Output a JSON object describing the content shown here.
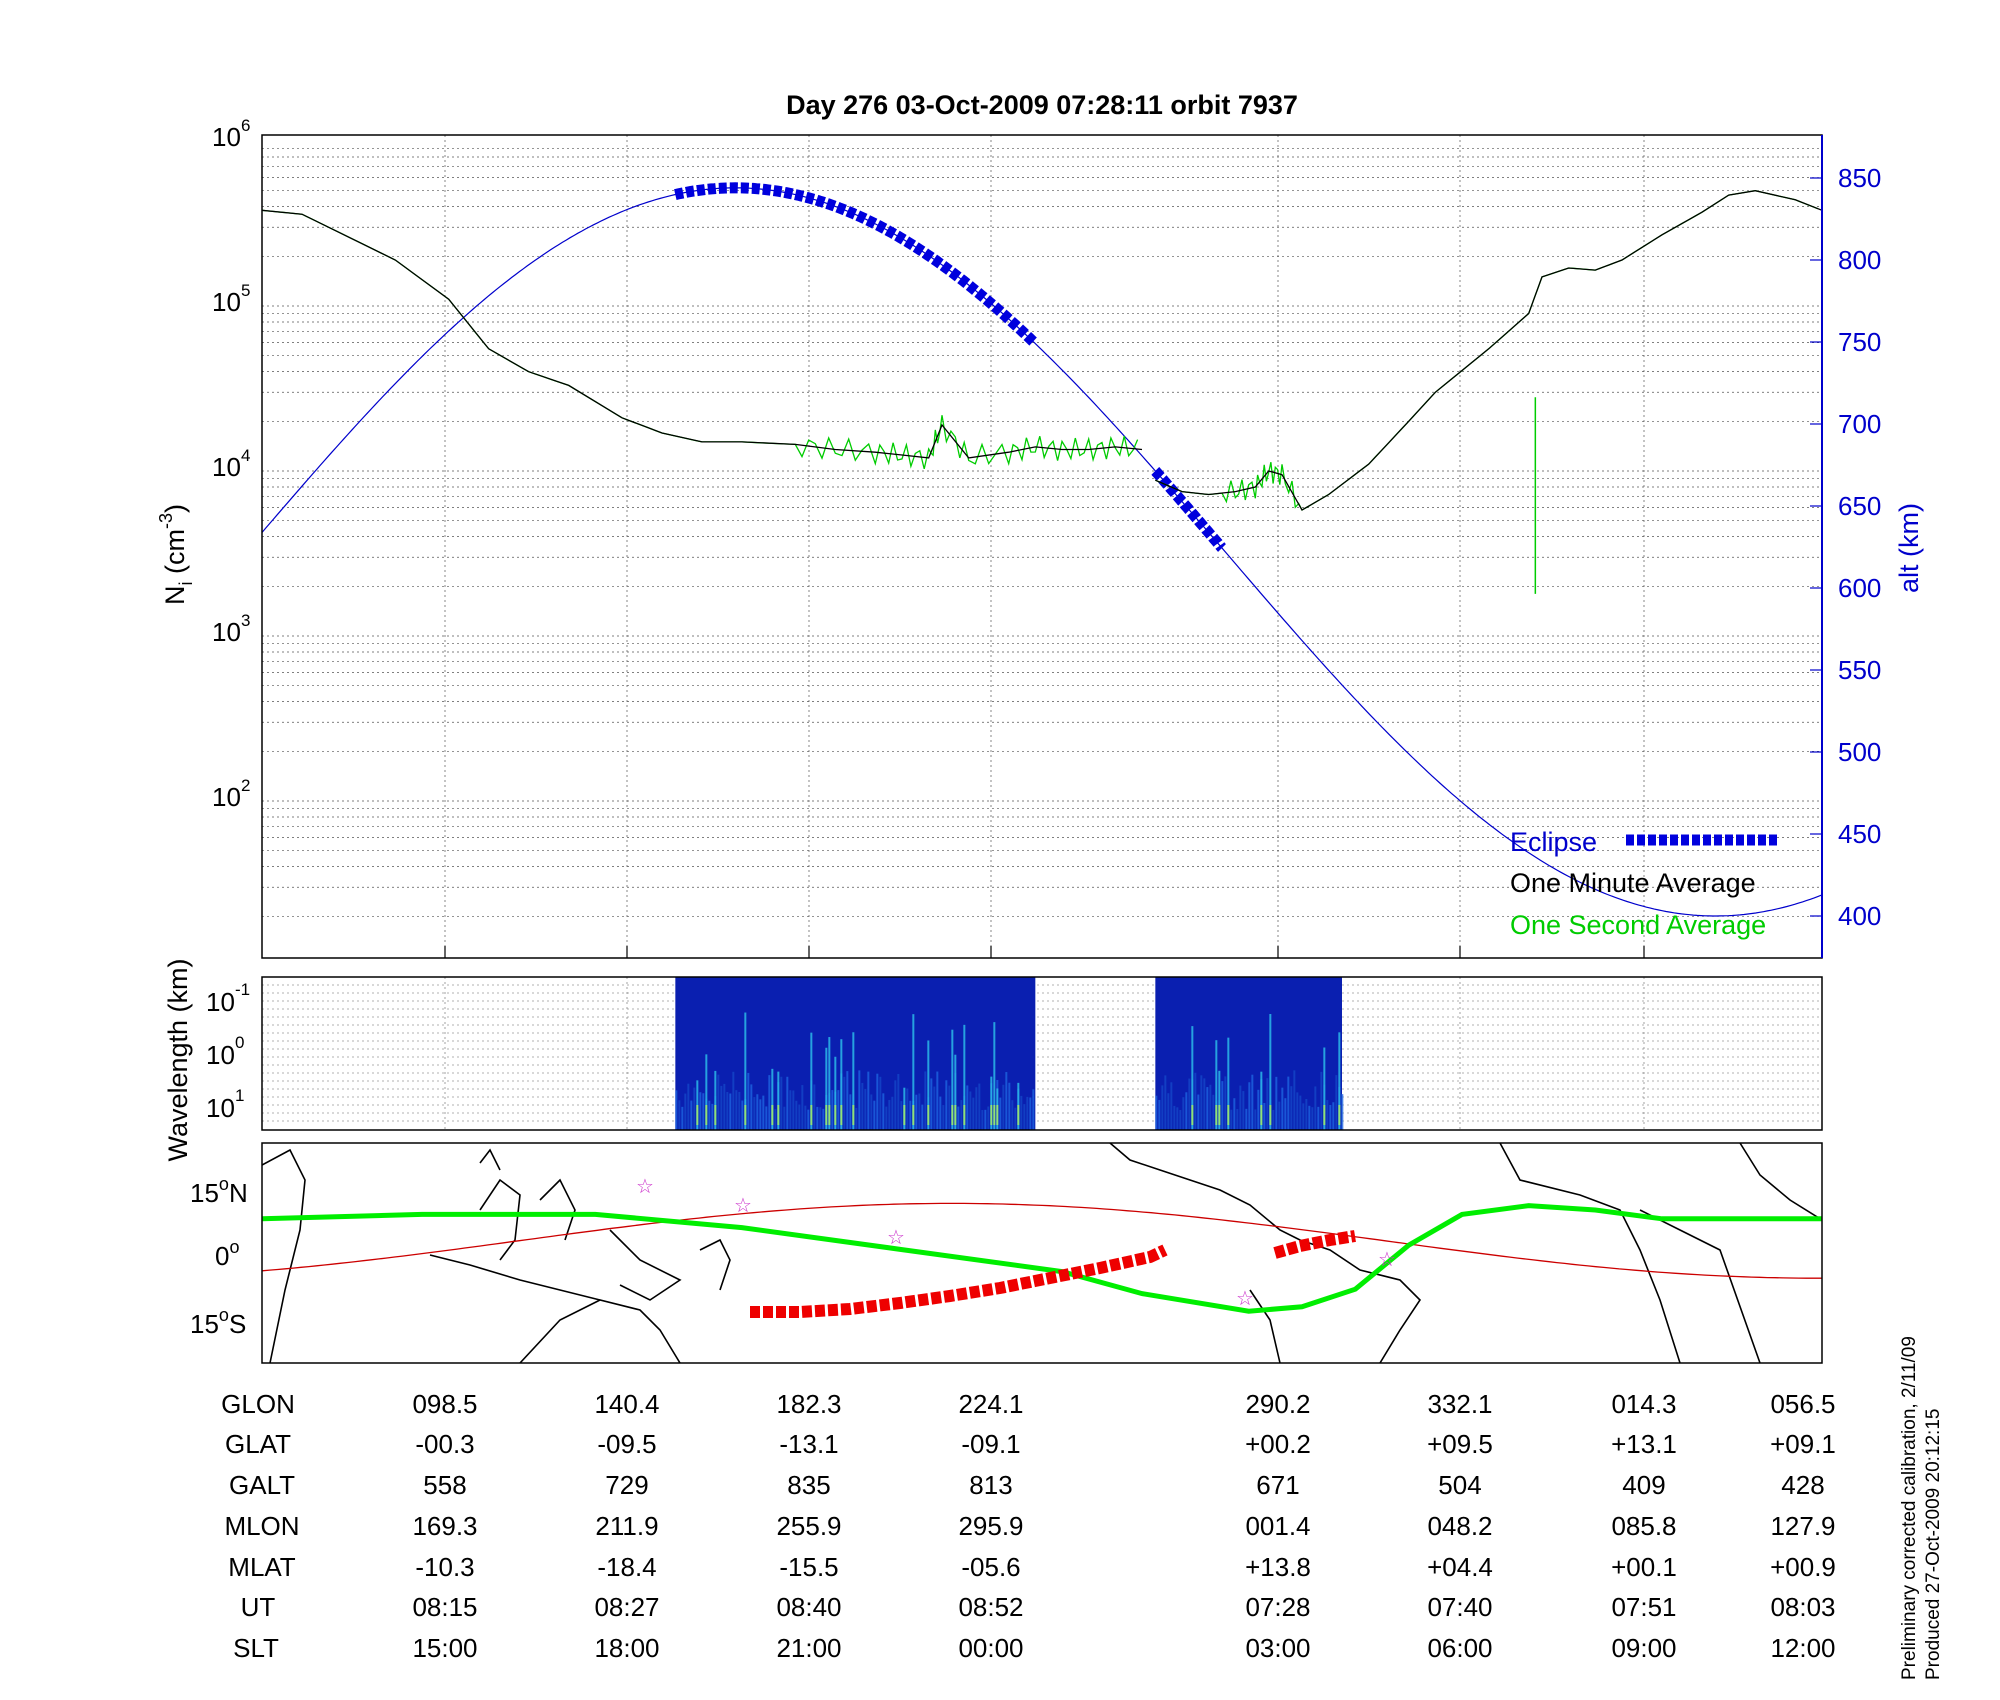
{
  "title": "Day 276  03-Oct-2009 07:28:11    orbit 7937",
  "colors": {
    "altitude": "#0000cc",
    "eclipse": "#0000dd",
    "one_minute": "#000000",
    "one_second": "#00cc00",
    "ground_track": "#00ee00",
    "magnetic_equator": "#cc0000",
    "map_eclipse": "#ee0000"
  },
  "top_panel": {
    "ylabel_left": "N",
    "ylabel_left_sub": "i",
    "ylabel_left_unit": " (cm",
    "ylabel_left_unit_sup": "-3",
    "ylabel_left_close": ")",
    "ylabel_right": "alt (km)",
    "left_ticks": [
      {
        "base": "10",
        "exp": "6"
      },
      {
        "base": "10",
        "exp": "5"
      },
      {
        "base": "10",
        "exp": "4"
      },
      {
        "base": "10",
        "exp": "3"
      },
      {
        "base": "10",
        "exp": "2"
      }
    ],
    "right_ticks": [
      "850",
      "800",
      "750",
      "700",
      "650",
      "600",
      "550",
      "500",
      "450",
      "400"
    ],
    "legend": {
      "eclipse": "Eclipse",
      "one_minute": "One Minute Average",
      "one_second": "One Second Average"
    }
  },
  "mid_panel": {
    "ylabel": "Wavelength (km)",
    "ticks": [
      {
        "base": "10",
        "exp": "-1"
      },
      {
        "base": "10",
        "exp": "0"
      },
      {
        "base": "10",
        "exp": "1"
      }
    ]
  },
  "map_panel": {
    "ticks": [
      {
        "deg": "15",
        "hemi": "N"
      },
      {
        "deg": "0",
        "hemi": ""
      },
      {
        "deg": "15",
        "hemi": "S"
      }
    ]
  },
  "table": {
    "rows": [
      {
        "label": "GLON",
        "values": [
          "098.5",
          "140.4",
          "182.3",
          "224.1",
          "290.2",
          "332.1",
          "014.3",
          "056.5"
        ]
      },
      {
        "label": "GLAT",
        "values": [
          "-00.3",
          "-09.5",
          "-13.1",
          "-09.1",
          "+00.2",
          "+09.5",
          "+13.1",
          "+09.1"
        ]
      },
      {
        "label": "GALT",
        "values": [
          "558",
          "729",
          "835",
          "813",
          "671",
          "504",
          "409",
          "428"
        ]
      },
      {
        "label": "MLON",
        "values": [
          "169.3",
          "211.9",
          "255.9",
          "295.9",
          "001.4",
          "048.2",
          "085.8",
          "127.9"
        ]
      },
      {
        "label": "MLAT",
        "values": [
          "-10.3",
          "-18.4",
          "-15.5",
          "-05.6",
          "+13.8",
          "+04.4",
          "+00.1",
          "+00.9"
        ]
      },
      {
        "label": "UT",
        "values": [
          "08:15",
          "08:27",
          "08:40",
          "08:52",
          "07:28",
          "07:40",
          "07:51",
          "08:03"
        ]
      },
      {
        "label": "SLT",
        "values": [
          "15:00",
          "18:00",
          "21:00",
          "00:00",
          "03:00",
          "06:00",
          "09:00",
          "12:00"
        ]
      }
    ]
  },
  "footnote": {
    "line1": "Preliminary corrected calibration, 2/11/09",
    "line2": "Produced 27-Oct-2009 20:12:15"
  },
  "chart_data": [
    {
      "type": "line",
      "title": "Day 276  03-Oct-2009 07:28:11    orbit 7937",
      "ylabel": "Ni (cm-3)",
      "y_scale": "log",
      "ylim": [
        10,
        1000000
      ],
      "y2label": "alt (km)",
      "y2lim": [
        375,
        875
      ],
      "x_ticks_SLT": [
        "15:00",
        "18:00",
        "21:00",
        "00:00",
        "03:00",
        "06:00",
        "09:00",
        "12:00"
      ],
      "series": [
        {
          "name": "One Minute Average",
          "axis": "left",
          "segments": [
            [
              [
                0.0,
                380000
              ],
              [
                0.03,
                360000
              ],
              [
                0.05,
                300000
              ],
              [
                0.1,
                190000
              ],
              [
                0.14,
                110000
              ],
              [
                0.17,
                55000
              ],
              [
                0.2,
                40000
              ],
              [
                0.23,
                33000
              ],
              [
                0.27,
                21000
              ],
              [
                0.3,
                17000
              ],
              [
                0.33,
                15000
              ],
              [
                0.36,
                15000
              ],
              [
                0.4,
                14500
              ],
              [
                0.43,
                13500
              ],
              [
                0.46,
                13000
              ],
              [
                0.48,
                12500
              ],
              [
                0.5,
                12000
              ],
              [
                0.51,
                19000
              ],
              [
                0.53,
                12000
              ],
              [
                0.56,
                13000
              ],
              [
                0.58,
                14000
              ],
              [
                0.6,
                13500
              ],
              [
                0.62,
                13500
              ],
              [
                0.64,
                14000
              ],
              [
                0.66,
                13500
              ]
            ],
            [
              [
                0.67,
                8800
              ],
              [
                0.69,
                7500
              ],
              [
                0.71,
                7200
              ],
              [
                0.73,
                7500
              ],
              [
                0.745,
                8000
              ],
              [
                0.755,
                10000
              ],
              [
                0.765,
                9500
              ],
              [
                0.78,
                5800
              ],
              [
                0.8,
                7200
              ],
              [
                0.83,
                11000
              ],
              [
                0.86,
                20000
              ],
              [
                0.88,
                30000
              ],
              [
                0.92,
                55000
              ],
              [
                0.95,
                90000
              ],
              [
                0.96,
                150000
              ],
              [
                0.98,
                170000
              ],
              [
                1.0,
                165000
              ],
              [
                1.02,
                190000
              ],
              [
                1.05,
                270000
              ],
              [
                1.08,
                370000
              ],
              [
                1.1,
                470000
              ],
              [
                1.12,
                500000
              ],
              [
                1.15,
                440000
              ],
              [
                1.17,
                380000
              ]
            ]
          ]
        },
        {
          "name": "One Second Average",
          "axis": "left",
          "note": "follows one minute average with extra spikes",
          "spike": [
            0.955,
            28000,
            1800
          ]
        },
        {
          "name": "Altitude",
          "axis": "right",
          "curve": "sinusoid",
          "minimum_km": 400,
          "maximum_km": 844
        },
        {
          "name": "Eclipse",
          "axis": "right",
          "segments": [
            [
              0.31,
              0.58
            ],
            [
              0.67,
              0.72
            ]
          ]
        }
      ]
    },
    {
      "type": "heatmap",
      "ylabel": "Wavelength (km)",
      "y_ticks": [
        "10^-1",
        "10^0",
        "10^1"
      ],
      "blocks": [
        [
          0.31,
          0.58
        ],
        [
          0.67,
          0.81
        ]
      ]
    }
  ]
}
